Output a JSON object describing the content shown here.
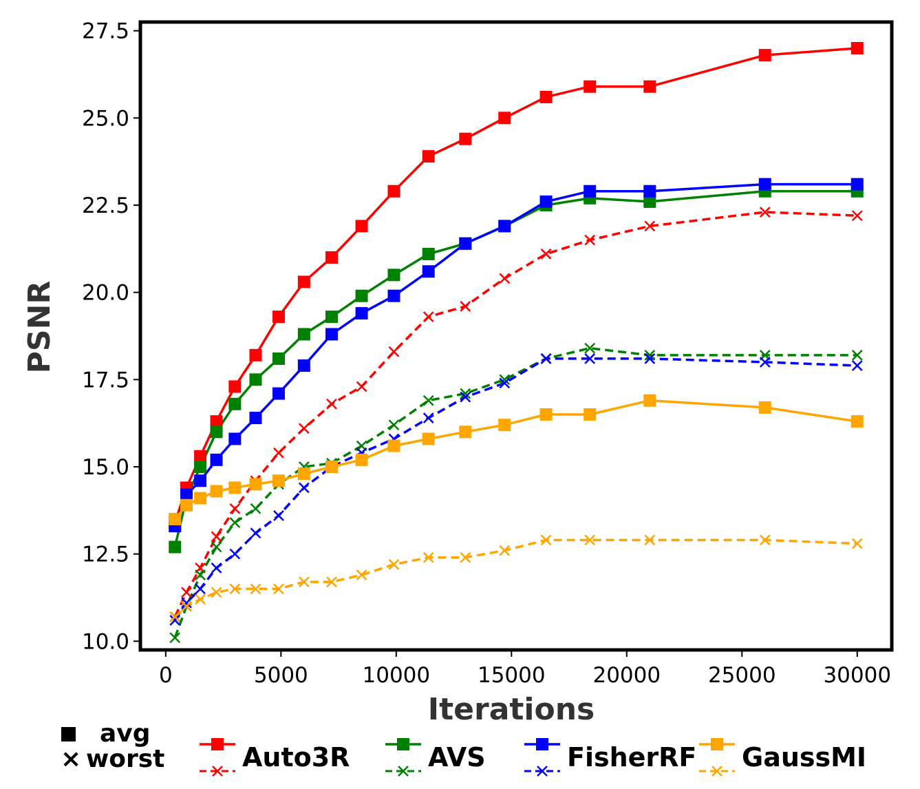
{
  "chart_data": {
    "type": "line",
    "title": "",
    "xlabel": "Iterations",
    "ylabel": "PSNR",
    "xlim": [
      -1100,
      31500
    ],
    "ylim": [
      9.75,
      27.75
    ],
    "xticks": [
      0,
      5000,
      10000,
      15000,
      20000,
      25000,
      30000
    ],
    "xtick_labels": [
      "0",
      "5000",
      "10000",
      "15000",
      "20000",
      "25000",
      "30000"
    ],
    "yticks": [
      10.0,
      12.5,
      15.0,
      17.5,
      20.0,
      22.5,
      25.0,
      27.5
    ],
    "ytick_labels": [
      "10.0",
      "12.5",
      "15.0",
      "17.5",
      "20.0",
      "22.5",
      "25.0",
      "27.5"
    ],
    "grid": false,
    "legend_position": "bottom",
    "marker_key": [
      {
        "symbol": "■",
        "label": "avg"
      },
      {
        "symbol": "×",
        "label": "worst"
      }
    ],
    "series": [
      {
        "name": "Auto3R",
        "metric": "avg",
        "color": "#ff0000",
        "style": "solid",
        "marker": "square",
        "x": [
          400,
          900,
          1500,
          2200,
          3000,
          3900,
          4900,
          6000,
          7200,
          8500,
          9900,
          11400,
          13000,
          14700,
          16500,
          18400,
          21000,
          26000,
          30000
        ],
        "y": [
          13.4,
          14.4,
          15.3,
          16.3,
          17.3,
          18.2,
          19.3,
          20.3,
          21.0,
          21.9,
          22.9,
          23.9,
          24.4,
          25.0,
          25.6,
          25.9,
          25.9,
          26.8,
          27.0
        ]
      },
      {
        "name": "Auto3R",
        "metric": "worst",
        "color": "#ff0000",
        "style": "dashed",
        "marker": "x",
        "x": [
          400,
          900,
          1500,
          2200,
          3000,
          3900,
          4900,
          6000,
          7200,
          8500,
          9900,
          11400,
          13000,
          14700,
          16500,
          18400,
          21000,
          26000,
          30000
        ],
        "y": [
          10.7,
          11.4,
          12.1,
          13.0,
          13.8,
          14.6,
          15.4,
          16.1,
          16.8,
          17.3,
          18.3,
          19.3,
          19.6,
          20.4,
          21.1,
          21.5,
          21.9,
          22.3,
          22.2
        ]
      },
      {
        "name": "AVS",
        "metric": "avg",
        "color": "#008000",
        "style": "solid",
        "marker": "square",
        "x": [
          400,
          900,
          1500,
          2200,
          3000,
          3900,
          4900,
          6000,
          7200,
          8500,
          9900,
          11400,
          13000,
          14700,
          16500,
          18400,
          21000,
          26000,
          30000
        ],
        "y": [
          12.7,
          14.1,
          15.0,
          16.0,
          16.8,
          17.5,
          18.1,
          18.8,
          19.3,
          19.9,
          20.5,
          21.1,
          21.4,
          21.9,
          22.5,
          22.7,
          22.6,
          22.9,
          22.9
        ]
      },
      {
        "name": "AVS",
        "metric": "worst",
        "color": "#008000",
        "style": "dashed",
        "marker": "x",
        "x": [
          400,
          900,
          1500,
          2200,
          3000,
          3900,
          4900,
          6000,
          7200,
          8500,
          9900,
          11400,
          13000,
          14700,
          16500,
          18400,
          21000,
          26000,
          30000
        ],
        "y": [
          10.1,
          11.0,
          11.9,
          12.7,
          13.4,
          13.8,
          14.5,
          15.0,
          15.1,
          15.6,
          16.2,
          16.9,
          17.1,
          17.5,
          18.1,
          18.4,
          18.2,
          18.2,
          18.2
        ]
      },
      {
        "name": "FisherRF",
        "metric": "avg",
        "color": "#0000ff",
        "style": "solid",
        "marker": "square",
        "x": [
          400,
          900,
          1500,
          2200,
          3000,
          3900,
          4900,
          6000,
          7200,
          8500,
          9900,
          11400,
          13000,
          14700,
          16500,
          18400,
          21000,
          26000,
          30000
        ],
        "y": [
          13.3,
          14.2,
          14.6,
          15.2,
          15.8,
          16.4,
          17.1,
          17.9,
          18.8,
          19.4,
          19.9,
          20.6,
          21.4,
          21.9,
          22.6,
          22.9,
          22.9,
          23.1,
          23.1
        ]
      },
      {
        "name": "FisherRF",
        "metric": "worst",
        "color": "#0000ff",
        "style": "dashed",
        "marker": "x",
        "x": [
          400,
          900,
          1500,
          2200,
          3000,
          3900,
          4900,
          6000,
          7200,
          8500,
          9900,
          11400,
          13000,
          14700,
          16500,
          18400,
          21000,
          26000,
          30000
        ],
        "y": [
          10.6,
          11.1,
          11.5,
          12.1,
          12.5,
          13.1,
          13.6,
          14.4,
          15.0,
          15.4,
          15.8,
          16.4,
          17.0,
          17.4,
          18.1,
          18.1,
          18.1,
          18.0,
          17.9
        ]
      },
      {
        "name": "GaussMI",
        "metric": "avg",
        "color": "#ffa500",
        "style": "solid",
        "marker": "square",
        "x": [
          400,
          900,
          1500,
          2200,
          3000,
          3900,
          4900,
          6000,
          7200,
          8500,
          9900,
          11400,
          13000,
          14700,
          16500,
          18400,
          21000,
          26000,
          30000
        ],
        "y": [
          13.5,
          13.9,
          14.1,
          14.3,
          14.4,
          14.5,
          14.6,
          14.8,
          15.0,
          15.2,
          15.6,
          15.8,
          16.0,
          16.2,
          16.5,
          16.5,
          16.9,
          16.7,
          16.3
        ]
      },
      {
        "name": "GaussMI",
        "metric": "worst",
        "color": "#ffa500",
        "style": "dashed",
        "marker": "x",
        "x": [
          400,
          900,
          1500,
          2200,
          3000,
          3900,
          4900,
          6000,
          7200,
          8500,
          9900,
          11400,
          13000,
          14700,
          16500,
          18400,
          21000,
          26000,
          30000
        ],
        "y": [
          10.7,
          11.0,
          11.2,
          11.4,
          11.5,
          11.5,
          11.5,
          11.7,
          11.7,
          11.9,
          12.2,
          12.4,
          12.4,
          12.6,
          12.9,
          12.9,
          12.9,
          12.9,
          12.8
        ]
      }
    ],
    "legend": [
      {
        "name": "Auto3R",
        "color": "#ff0000"
      },
      {
        "name": "AVS",
        "color": "#008000"
      },
      {
        "name": "FisherRF",
        "color": "#0000ff"
      },
      {
        "name": "GaussMI",
        "color": "#ffa500"
      }
    ]
  }
}
